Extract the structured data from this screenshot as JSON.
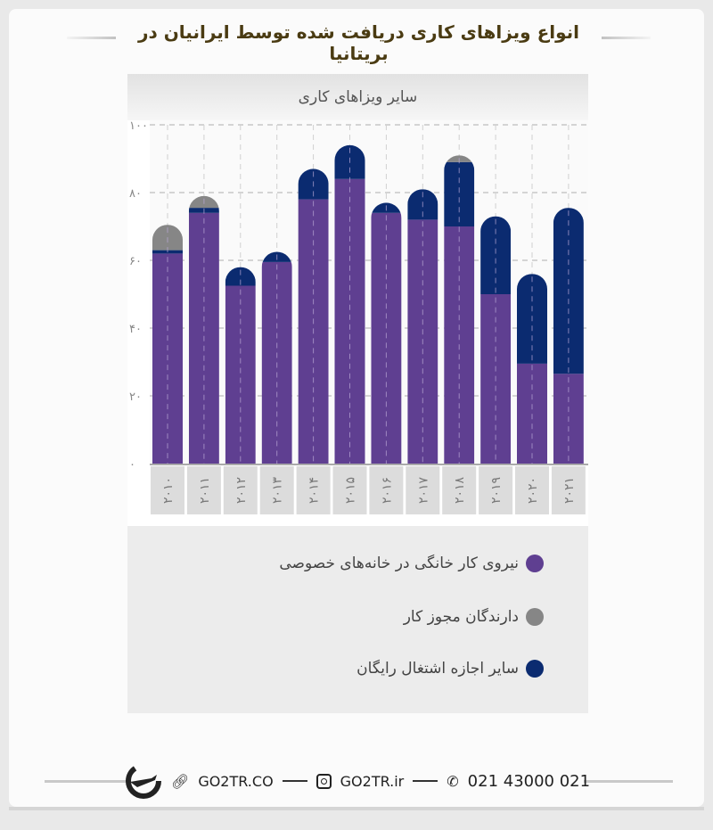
{
  "title": "انواع ویزاهای کاری دریافت شده توسط ایرانیان در بریتانیا",
  "footer": {
    "website": "GO2TR.CO",
    "instagram": "GO2TR.ir",
    "phone": "021 43000 021",
    "icons": [
      "logo-plane-icon",
      "link-icon",
      "instagram-icon",
      "phone-icon"
    ]
  },
  "chart_data": {
    "type": "bar",
    "stacked": true,
    "title": "سایر ویزاهای کاری",
    "xlabel": "",
    "ylabel": "",
    "ylim": [
      0,
      100
    ],
    "yticks": [
      "۰",
      "۲۰",
      "۴۰",
      "۶۰",
      "۸۰",
      "۱۰۰"
    ],
    "ytick_values": [
      0,
      20,
      40,
      60,
      80,
      100
    ],
    "grid": true,
    "legend_position": "bottom",
    "categories": [
      "۲۰۱۰",
      "۲۰۱۱",
      "۲۰۱۲",
      "۲۰۱۳",
      "۲۰۱۴",
      "۲۰۱۵",
      "۲۰۱۶",
      "۲۰۱۷",
      "۲۰۱۸",
      "۲۰۱۹",
      "۲۰۲۰",
      "۲۰۲۱"
    ],
    "series": [
      {
        "name": "نیروی کار خانگی در خانه‌های خصوصی",
        "color": "#5f3f91",
        "values": [
          62,
          74,
          52.5,
          59.5,
          78,
          84,
          74,
          72,
          70,
          50,
          29.5,
          26.5
        ]
      },
      {
        "name": "سایر اجازه اشتغال رایگان",
        "color": "#0b2b70",
        "values": [
          1,
          1.5,
          5.5,
          3,
          9,
          10,
          3,
          9,
          19,
          23,
          26.5,
          49
        ]
      },
      {
        "name": "دارندگان مجوز کار",
        "color": "#868686",
        "values": [
          7.5,
          3.5,
          0,
          0,
          0,
          0,
          0,
          0,
          2,
          0,
          0,
          0
        ]
      }
    ]
  }
}
